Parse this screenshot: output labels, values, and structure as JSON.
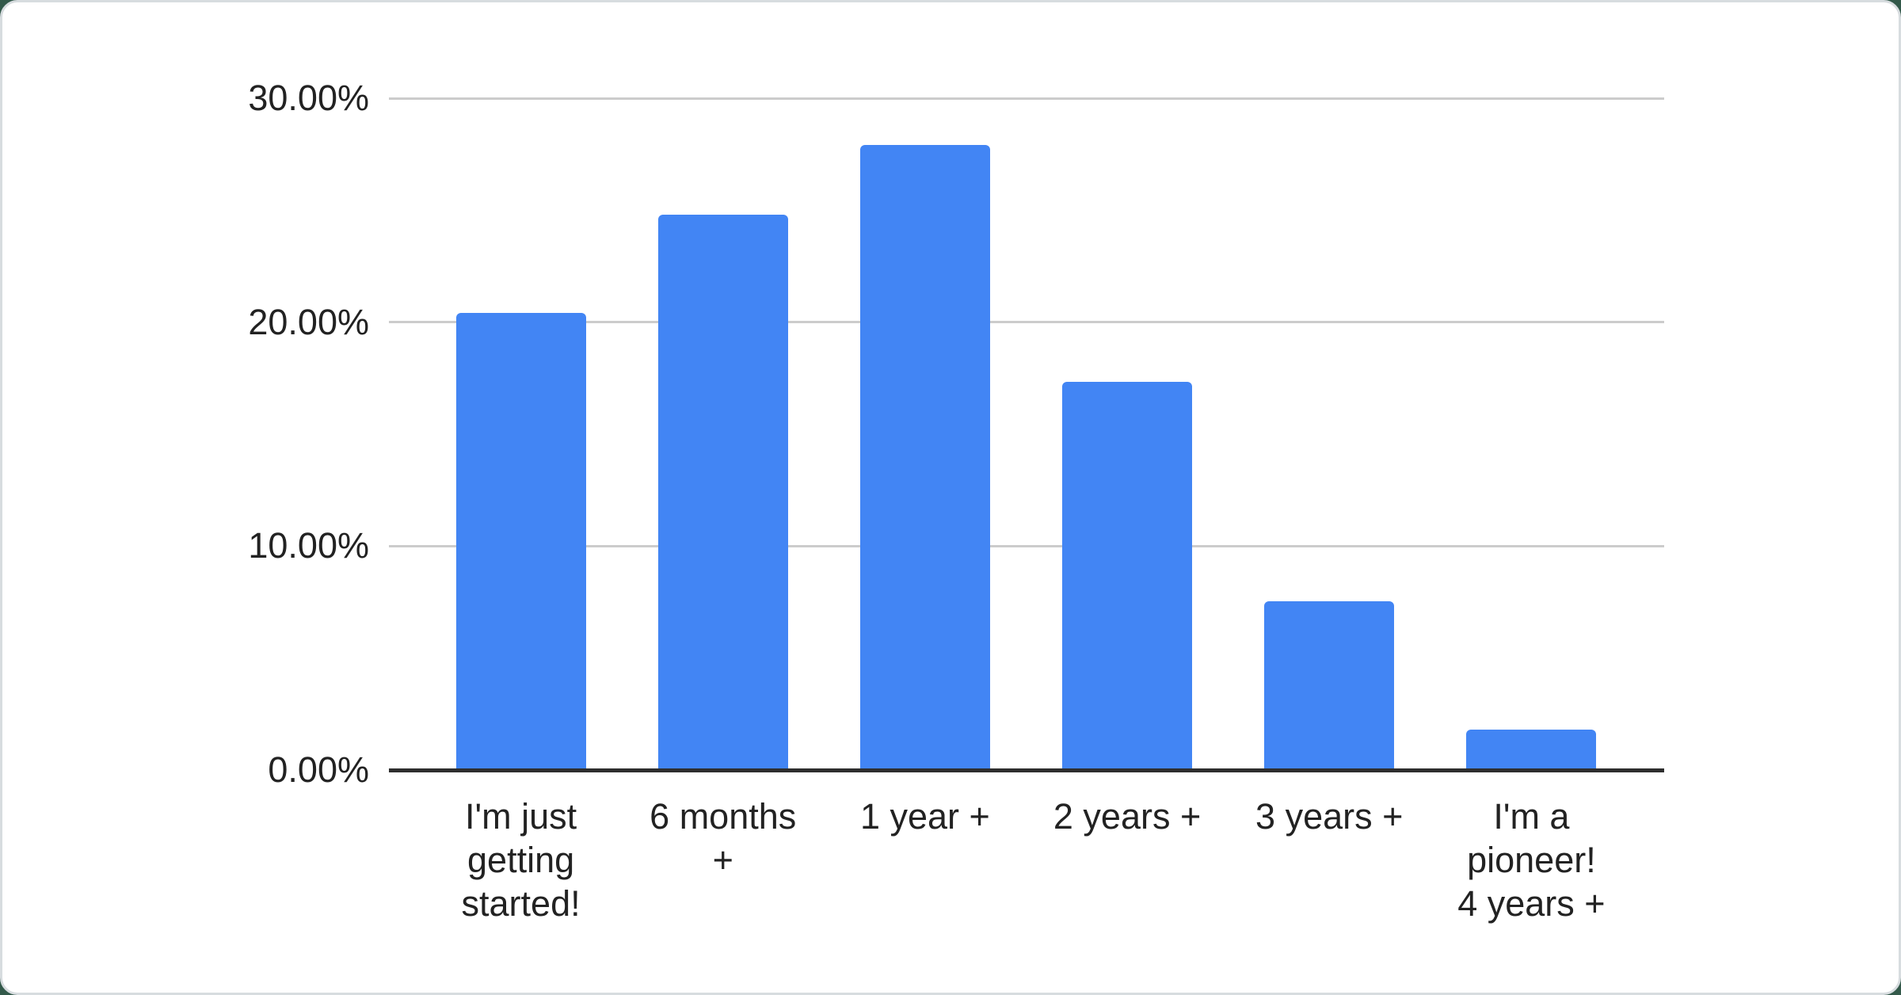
{
  "page": {
    "background_color": "#33594a",
    "card_background": "#ffffff",
    "card_border_color": "#d7dcdf"
  },
  "chart_data": {
    "type": "bar",
    "title": "",
    "xlabel": "",
    "ylabel": "",
    "categories": [
      "I'm just getting started!",
      "6 months +",
      "1 year +",
      "2 years +",
      "3 years +",
      "I'm a pioneer! 4 years +"
    ],
    "category_lines": [
      [
        "I'm just",
        "getting",
        "started!"
      ],
      [
        "6 months",
        "+"
      ],
      [
        "1 year +"
      ],
      [
        "2 years +"
      ],
      [
        "3 years +"
      ],
      [
        "I'm a",
        "pioneer!",
        "4 years +"
      ]
    ],
    "values": [
      20.43,
      24.81,
      27.91,
      17.32,
      7.54,
      1.79
    ],
    "value_unit": "percent",
    "ylim": [
      0,
      30
    ],
    "y_ticks": [
      {
        "value": 0,
        "label": "0.00%"
      },
      {
        "value": 10,
        "label": "10.00%"
      },
      {
        "value": 20,
        "label": "20.00%"
      },
      {
        "value": 30,
        "label": "30.00%"
      }
    ],
    "grid": true,
    "legend": "none",
    "bar_color": "#4285f4",
    "gridline_color": "#cccccc",
    "axis_line_color": "#2e2e2e",
    "label_color": "#222222"
  }
}
